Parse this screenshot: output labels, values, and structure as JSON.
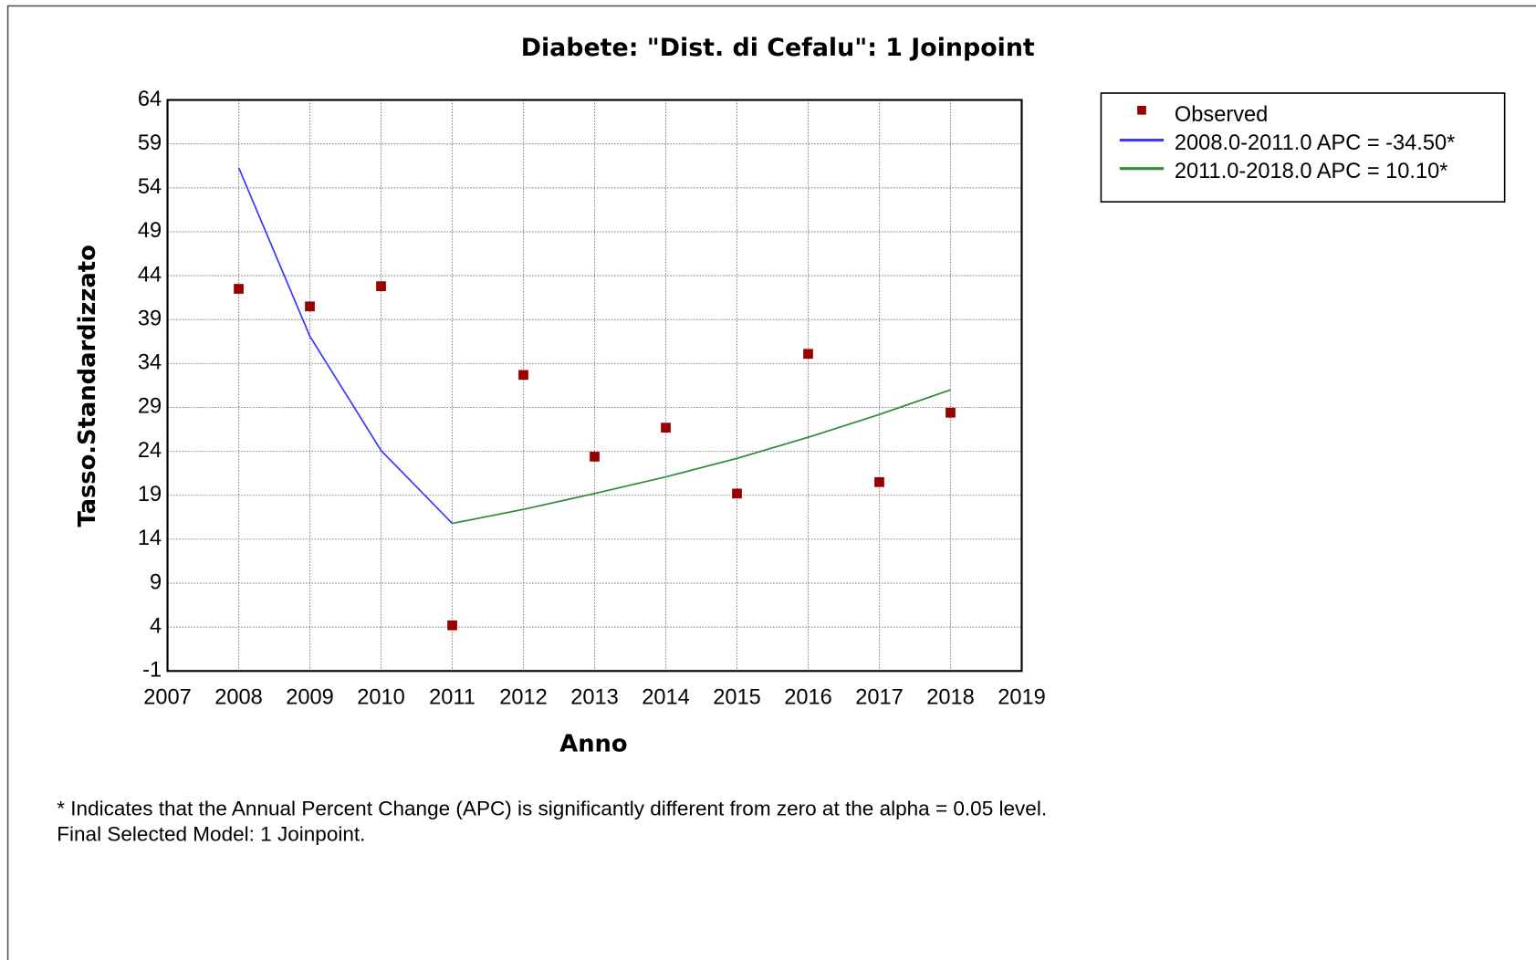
{
  "chart_data": {
    "type": "scatter",
    "title": "Diabete: \"Dist. di Cefalu\": 1 Joinpoint",
    "x_label": "Anno",
    "y_label": "Tasso.Standardizzato",
    "x": [
      2008,
      2009,
      2010,
      2011,
      2012,
      2013,
      2014,
      2015,
      2016,
      2017,
      2018
    ],
    "series": [
      {
        "name": "Observed",
        "type": "scatter",
        "color": "#990000",
        "values": [
          42.5,
          40.5,
          42.8,
          4.2,
          32.7,
          23.4,
          26.7,
          19.2,
          35.1,
          20.5,
          28.4
        ]
      },
      {
        "name": "2008.0-2011.0 APC  = -34.50*",
        "type": "line",
        "color": "#3a3aff",
        "values": [
          56.3,
          37.1,
          24.1,
          15.8,
          null,
          null,
          null,
          null,
          null,
          null,
          null
        ]
      },
      {
        "name": "2011.0-2018.0 APC  =  10.10*",
        "type": "line",
        "color": "#2e8b2e",
        "values": [
          null,
          null,
          null,
          15.8,
          17.4,
          19.2,
          21.1,
          23.2,
          25.6,
          28.2,
          31.0
        ]
      }
    ],
    "xlim": [
      2007,
      2019
    ],
    "xticks": [
      2007,
      2008,
      2009,
      2010,
      2011,
      2012,
      2013,
      2014,
      2015,
      2016,
      2017,
      2018,
      2019
    ],
    "ylim": [
      -1,
      64
    ],
    "yticks": [
      -1,
      4,
      9,
      14,
      19,
      24,
      29,
      34,
      39,
      44,
      49,
      54,
      59,
      64
    ],
    "grid": true,
    "legend": "right",
    "footnotes": [
      "* Indicates that the Annual Percent Change (APC) is significantly different from zero at the alpha = 0.05 level.",
      "Final Selected Model: 1 Joinpoint."
    ]
  }
}
